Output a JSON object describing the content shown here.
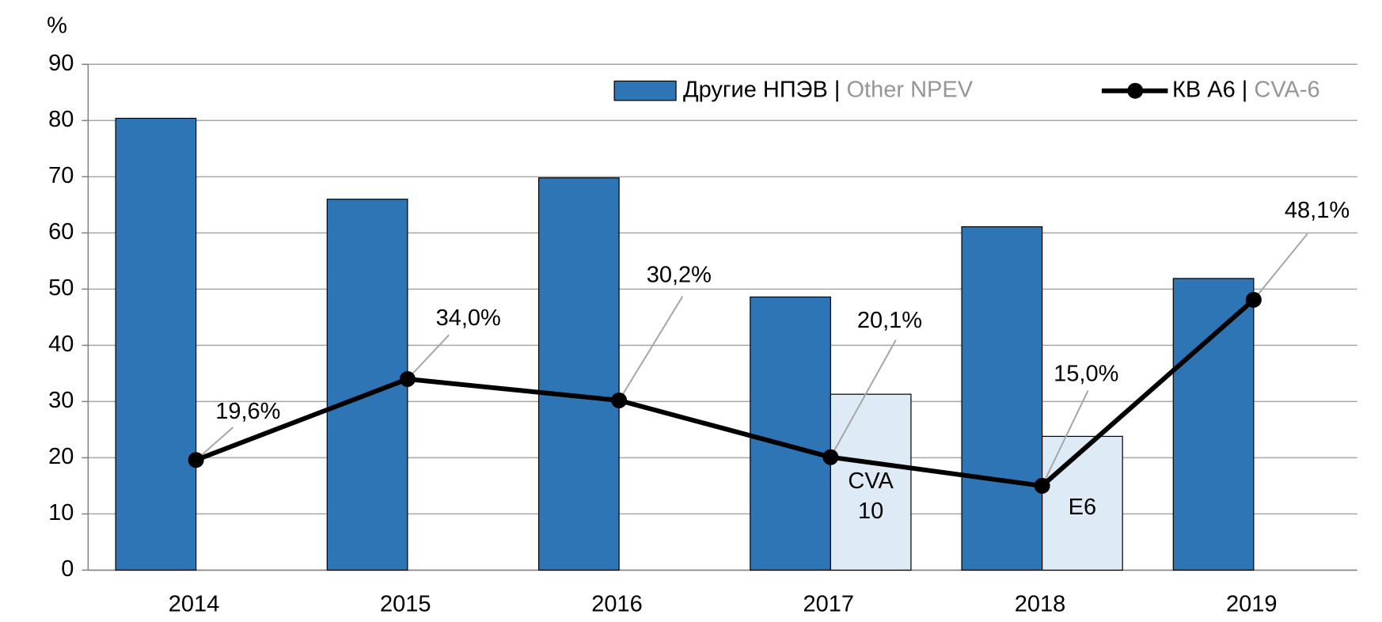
{
  "chart_data": {
    "type": "bar",
    "y_label": "%",
    "categories": [
      "2014",
      "2015",
      "2016",
      "2017",
      "2018",
      "2019"
    ],
    "series": [
      {
        "name": "Другие НПЭВ | Other NPEV",
        "type": "bar",
        "color": "#2e75b6",
        "values": [
          80.4,
          66,
          69.8,
          48.6,
          61.1,
          51.9
        ]
      },
      {
        "type": "bar",
        "color": "#deebf7",
        "values": [
          null,
          null,
          null,
          31.3,
          23.8,
          null
        ],
        "labels": [
          null,
          null,
          null,
          "CVA 10",
          "E6",
          null
        ]
      },
      {
        "name": "КВ А6 | CVA-6",
        "type": "line",
        "color": "#000000",
        "values": [
          19.6,
          34.0,
          30.2,
          20.1,
          15.0,
          48.1
        ],
        "value_labels": [
          "19,6%",
          "34,0%",
          "30,2%",
          "20,1%",
          "15,0%",
          "48,1%"
        ]
      }
    ],
    "ylim": [
      0,
      90
    ],
    "yticks": [
      0,
      10,
      20,
      30,
      40,
      50,
      60,
      70,
      80,
      90
    ],
    "grid": true,
    "legend": "top-right"
  }
}
